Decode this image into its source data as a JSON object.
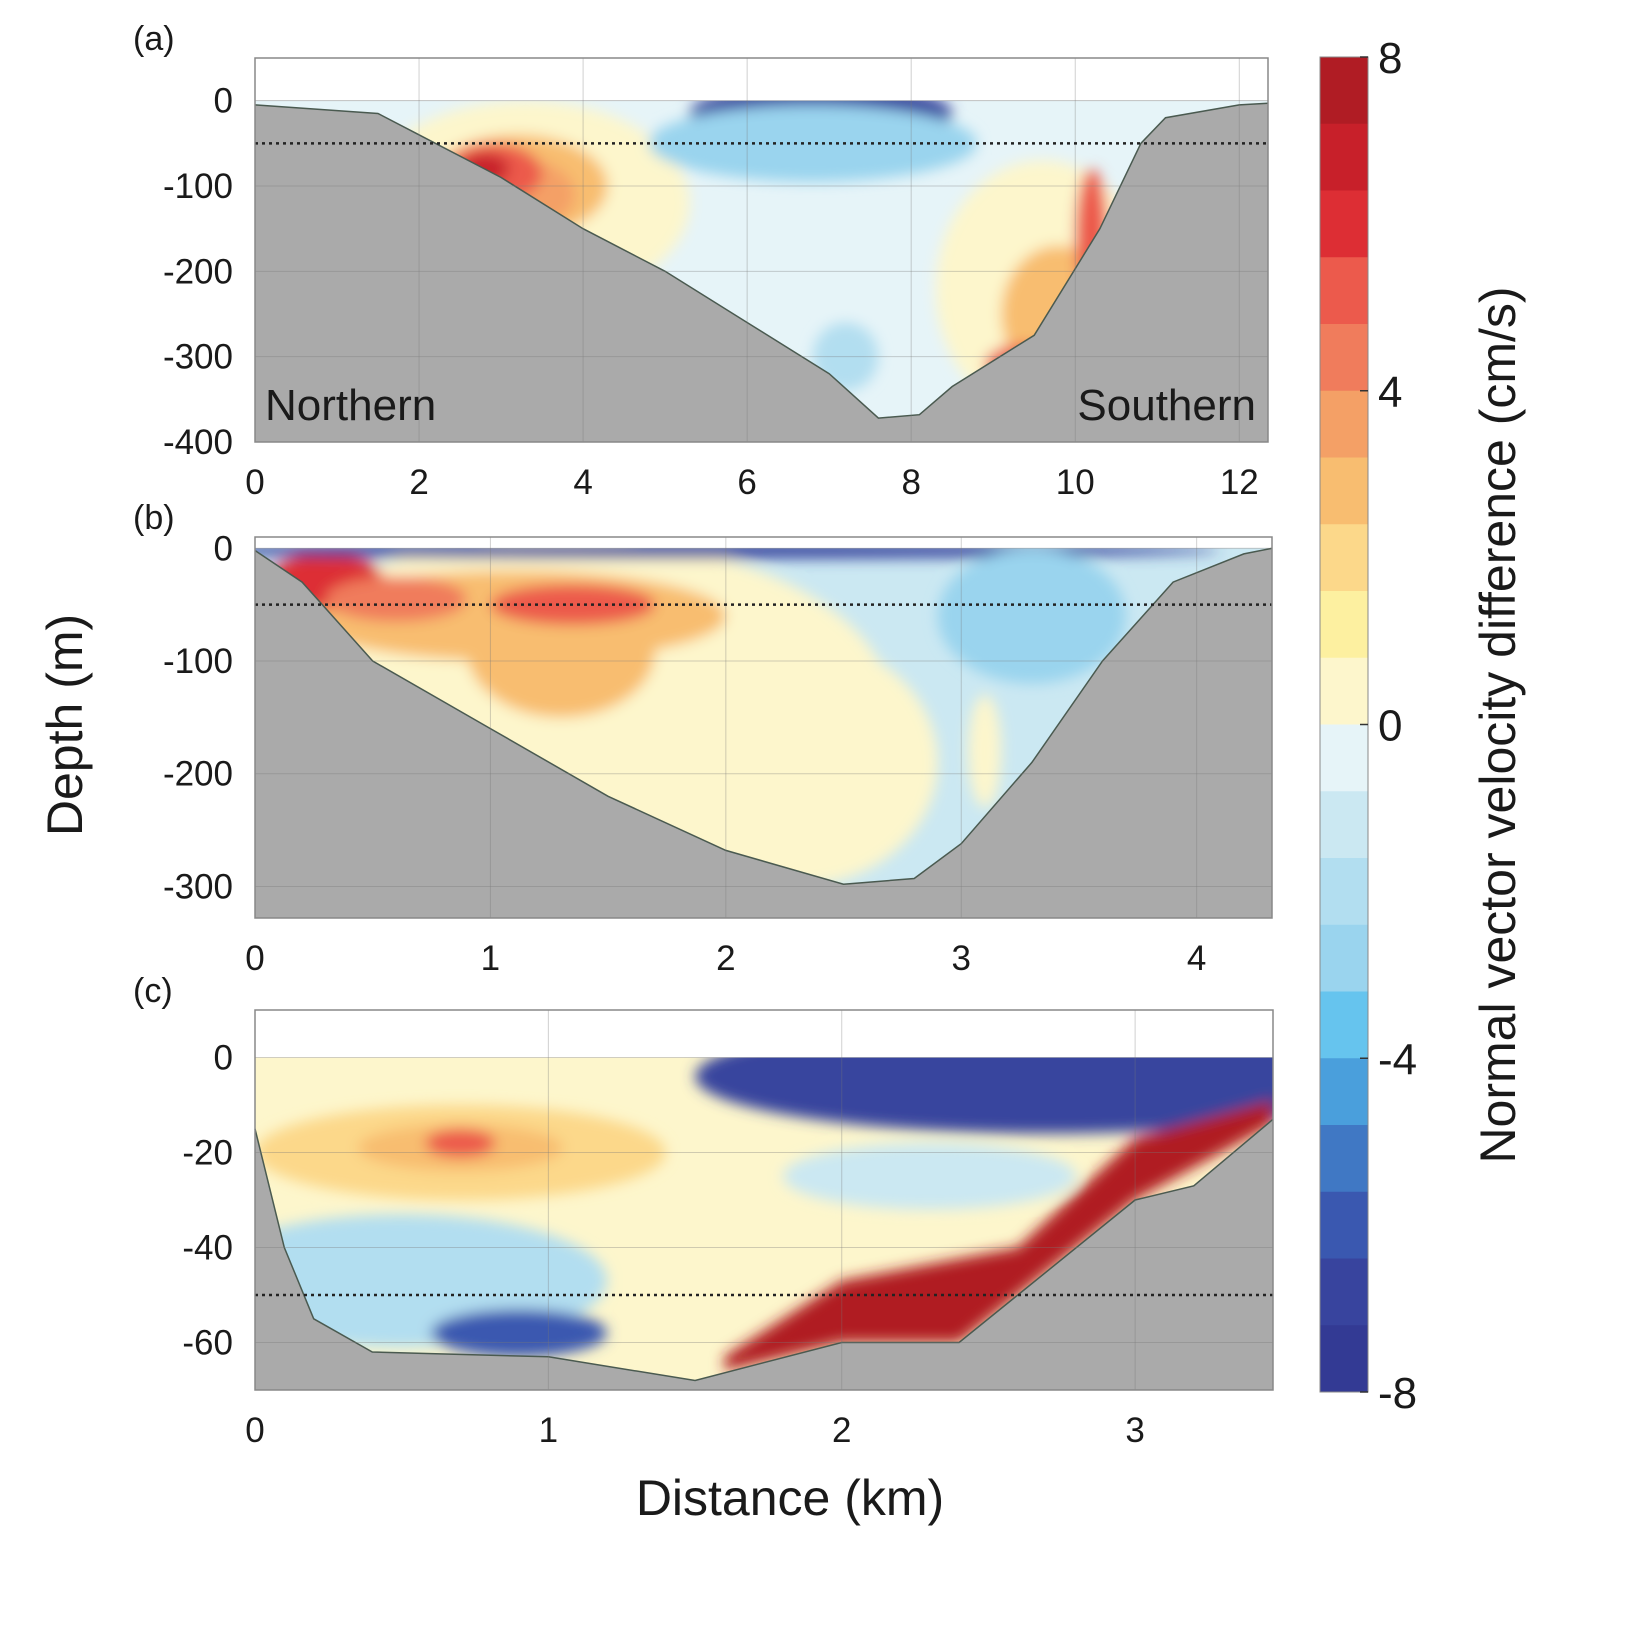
{
  "figure": {
    "ylabel": "Depth (m)",
    "xlabel": "Distance (km)"
  },
  "colorbar": {
    "label": "Normal vector velocity difference (cm/s)",
    "range": [
      -8,
      8
    ],
    "ticks": [
      "8",
      "4",
      "0",
      "-4",
      "-8"
    ],
    "tick_values": [
      8,
      4,
      0,
      -4,
      -8
    ],
    "levels_top_to_bottom": [
      "#b01c24",
      "#c8202a",
      "#dd2e34",
      "#ec5a4c",
      "#f07c5c",
      "#f4a066",
      "#f8bd70",
      "#fcd88a",
      "#fdf0a0",
      "#fdf6cc",
      "#e6f4f8",
      "#cbe8f2",
      "#b2def0",
      "#9ad4ee",
      "#66c4ee",
      "#4a9fdc",
      "#4078c4",
      "#3a58b0",
      "#38449e",
      "#333a94"
    ],
    "bathymetry_color": "#aaaaaa"
  },
  "chart_data": [
    {
      "type": "heatmap",
      "panel_label": "(a)",
      "xlim": [
        0,
        12.35
      ],
      "ylim": [
        -400,
        50
      ],
      "xticks": [
        0,
        2,
        4,
        6,
        8,
        10,
        12
      ],
      "xtick_labels": [
        "0",
        "2",
        "4",
        "6",
        "8",
        "10",
        "12"
      ],
      "yticks": [
        0,
        -100,
        -200,
        -300,
        -400
      ],
      "ytick_labels": [
        "0",
        "-100",
        "-200",
        "-300",
        "-400"
      ],
      "grid": true,
      "reference_depth": -50,
      "annotations": {
        "left": "Northern",
        "right": "Southern"
      },
      "background_value": -0.5,
      "bottom_profile": [
        [
          0,
          -5
        ],
        [
          1.5,
          -15
        ],
        [
          2,
          -40
        ],
        [
          3,
          -90
        ],
        [
          4,
          -150
        ],
        [
          5,
          -200
        ],
        [
          6,
          -260
        ],
        [
          7,
          -320
        ],
        [
          7.6,
          -372
        ],
        [
          8.1,
          -368
        ],
        [
          8.5,
          -335
        ],
        [
          9.5,
          -275
        ],
        [
          10.3,
          -150
        ],
        [
          10.8,
          -50
        ],
        [
          11.1,
          -20
        ],
        [
          12,
          -5
        ],
        [
          12.35,
          -3
        ]
      ],
      "features": [
        {
          "x": 3.3,
          "y": -120,
          "rx": 2.0,
          "ry": 120,
          "v": 0.5
        },
        {
          "x": 3.2,
          "y": -100,
          "rx": 1.1,
          "ry": 60,
          "v": 2.5
        },
        {
          "x": 3.3,
          "y": -110,
          "rx": 0.6,
          "ry": 40,
          "v": 3.5
        },
        {
          "x": 2.9,
          "y": -85,
          "rx": 0.6,
          "ry": 35,
          "v": 5.5
        },
        {
          "x": 2.8,
          "y": -80,
          "rx": 0.3,
          "ry": 18,
          "v": 6.5
        },
        {
          "x": 6.9,
          "y": -15,
          "rx": 1.6,
          "ry": 35,
          "v": -7
        },
        {
          "x": 6.8,
          "y": -50,
          "rx": 2.0,
          "ry": 45,
          "v": -3
        },
        {
          "x": 7.5,
          "y": -200,
          "rx": 0.9,
          "ry": 50,
          "v": -0.3
        },
        {
          "x": 7.2,
          "y": -300,
          "rx": 0.4,
          "ry": 40,
          "v": -2
        },
        {
          "x": 9.6,
          "y": -220,
          "rx": 1.3,
          "ry": 150,
          "v": 0.5
        },
        {
          "x": 9.8,
          "y": -250,
          "rx": 0.7,
          "ry": 80,
          "v": 3
        },
        {
          "x": 10.2,
          "y": -160,
          "rx": 0.2,
          "ry": 80,
          "v": 5.5
        },
        {
          "x": 9.4,
          "y": -310,
          "rx": 0.5,
          "ry": 25,
          "v": 5
        }
      ]
    },
    {
      "type": "heatmap",
      "panel_label": "(b)",
      "xlim": [
        0,
        4.32
      ],
      "ylim": [
        -328,
        10
      ],
      "xticks": [
        0,
        1,
        2,
        3,
        4
      ],
      "xtick_labels": [
        "0",
        "1",
        "2",
        "3",
        "4"
      ],
      "yticks": [
        0,
        -100,
        -200,
        -300
      ],
      "ytick_labels": [
        "0",
        "-100",
        "-200",
        "-300"
      ],
      "grid": true,
      "reference_depth": -50,
      "background_value": -1,
      "bottom_profile": [
        [
          0,
          -2
        ],
        [
          0.2,
          -30
        ],
        [
          0.5,
          -100
        ],
        [
          1,
          -160
        ],
        [
          1.5,
          -220
        ],
        [
          2,
          -268
        ],
        [
          2.5,
          -298
        ],
        [
          2.8,
          -293
        ],
        [
          3,
          -262
        ],
        [
          3.3,
          -190
        ],
        [
          3.6,
          -100
        ],
        [
          3.9,
          -30
        ],
        [
          4.2,
          -5
        ],
        [
          4.32,
          0
        ]
      ],
      "features": [
        {
          "x": 1.3,
          "y": -140,
          "rx": 1.4,
          "ry": 150,
          "v": 0.5
        },
        {
          "x": 2.3,
          "y": -190,
          "rx": 0.6,
          "ry": 110,
          "v": 0.5
        },
        {
          "x": 1.1,
          "y": -60,
          "rx": 0.9,
          "ry": 40,
          "v": 2.5
        },
        {
          "x": 1.3,
          "y": -90,
          "rx": 0.4,
          "ry": 60,
          "v": 2.5
        },
        {
          "x": 0.3,
          "y": -30,
          "rx": 0.25,
          "ry": 25,
          "v": 6
        },
        {
          "x": 0.6,
          "y": -45,
          "rx": 0.3,
          "ry": 20,
          "v": 4.5
        },
        {
          "x": 1.35,
          "y": -50,
          "rx": 0.35,
          "ry": 18,
          "v": 5.5
        },
        {
          "x": 1.8,
          "y": -2,
          "rx": 2.3,
          "ry": 7,
          "v": -7
        },
        {
          "x": 3.3,
          "y": -60,
          "rx": 0.4,
          "ry": 60,
          "v": -2.5
        },
        {
          "x": 3.1,
          "y": -180,
          "rx": 0.07,
          "ry": 50,
          "v": 0.5
        }
      ]
    },
    {
      "type": "heatmap",
      "panel_label": "(c)",
      "xlim": [
        0,
        3.47
      ],
      "ylim": [
        -70,
        10
      ],
      "xticks": [
        0,
        1,
        2,
        3
      ],
      "xtick_labels": [
        "0",
        "1",
        "2",
        "3"
      ],
      "yticks": [
        0,
        -20,
        -40,
        -60
      ],
      "ytick_labels": [
        "0",
        "-20",
        "-40",
        "-60"
      ],
      "grid": true,
      "reference_depth": -50,
      "background_value": 0.5,
      "bottom_profile": [
        [
          0,
          -15
        ],
        [
          0.1,
          -40
        ],
        [
          0.2,
          -55
        ],
        [
          0.4,
          -62
        ],
        [
          1,
          -63
        ],
        [
          1.5,
          -68
        ],
        [
          2,
          -60
        ],
        [
          2.4,
          -60
        ],
        [
          2.6,
          -50
        ],
        [
          3,
          -30
        ],
        [
          3.2,
          -27
        ],
        [
          3.47,
          -13
        ]
      ],
      "features": [
        {
          "x": 2.7,
          "y": -4,
          "rx": 1.2,
          "ry": 12,
          "v": -7
        },
        {
          "x": 2.3,
          "y": -25,
          "rx": 0.5,
          "ry": 7,
          "v": -1
        },
        {
          "x": 0.7,
          "y": -20,
          "rx": 0.7,
          "ry": 10,
          "v": 2
        },
        {
          "x": 0.7,
          "y": -19,
          "rx": 0.35,
          "ry": 5,
          "v": 3
        },
        {
          "x": 0.7,
          "y": -18,
          "rx": 0.12,
          "ry": 3,
          "v": 5
        },
        {
          "x": 0.5,
          "y": -47,
          "rx": 0.7,
          "ry": 14,
          "v": -2
        },
        {
          "x": 0.9,
          "y": -58,
          "rx": 0.3,
          "ry": 5,
          "v": -6
        },
        {
          "poly": [
            [
              1.6,
              -63
            ],
            [
              2.0,
              -47
            ],
            [
              2.6,
              -40
            ],
            [
              3.0,
              -17
            ],
            [
              3.47,
              -9
            ],
            [
              3.47,
              -14
            ],
            [
              3.0,
              -30
            ],
            [
              2.6,
              -50
            ],
            [
              2.4,
              -60
            ],
            [
              2.0,
              -60
            ],
            [
              1.6,
              -66
            ]
          ],
          "v": 7.5
        }
      ]
    }
  ]
}
